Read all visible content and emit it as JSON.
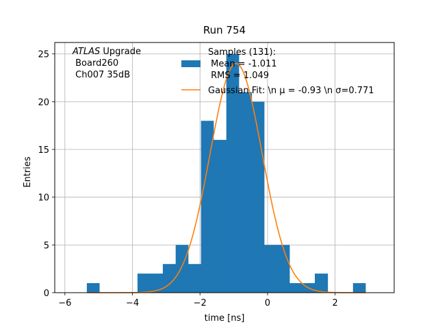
{
  "chart_data": {
    "type": "histogram",
    "title": "Run 754",
    "xlabel": "time [ns]",
    "ylabel": "Entries",
    "xlim": [
      -6.3,
      3.75
    ],
    "ylim": [
      0,
      26.2
    ],
    "xticks": [
      -6,
      -4,
      -2,
      0,
      2
    ],
    "yticks": [
      0,
      5,
      10,
      15,
      20,
      25
    ],
    "xtick_labels": [
      "−6",
      "−4",
      "−2",
      "0",
      "2"
    ],
    "ytick_labels": [
      "0",
      "5",
      "10",
      "15",
      "20",
      "25"
    ],
    "grid": true,
    "legend_position": "top-center",
    "annotation": {
      "line1_italic": "ATLAS",
      "line1_rest": " Upgrade",
      "line2": " Board260",
      "line3": " Ch007 35dB"
    },
    "histogram": {
      "name_lines": [
        "Samples (131):",
        " Mean = -1.011",
        " RMS = 1.049"
      ],
      "color": "#1f77b4",
      "bins": [
        {
          "x0": -5.35,
          "x1": -4.98,
          "count": 1
        },
        {
          "x0": -3.85,
          "x1": -3.47,
          "count": 2
        },
        {
          "x0": -3.47,
          "x1": -3.1,
          "count": 2
        },
        {
          "x0": -3.1,
          "x1": -2.72,
          "count": 3
        },
        {
          "x0": -2.72,
          "x1": -2.35,
          "count": 5
        },
        {
          "x0": -2.35,
          "x1": -1.97,
          "count": 3
        },
        {
          "x0": -1.97,
          "x1": -1.6,
          "count": 18
        },
        {
          "x0": -1.6,
          "x1": -1.22,
          "count": 16
        },
        {
          "x0": -1.22,
          "x1": -0.85,
          "count": 25
        },
        {
          "x0": -0.85,
          "x1": -0.47,
          "count": 21
        },
        {
          "x0": -0.47,
          "x1": -0.1,
          "count": 20
        },
        {
          "x0": -0.1,
          "x1": 0.28,
          "count": 5
        },
        {
          "x0": 0.28,
          "x1": 0.65,
          "count": 5
        },
        {
          "x0": 0.65,
          "x1": 1.03,
          "count": 1
        },
        {
          "x0": 1.03,
          "x1": 1.4,
          "count": 1
        },
        {
          "x0": 1.4,
          "x1": 1.78,
          "count": 2
        },
        {
          "x0": 2.53,
          "x1": 2.9,
          "count": 1
        }
      ]
    },
    "fit": {
      "name": "Gaussian Fit: \\n μ = -0.93 \\n σ=0.771",
      "color": "#ff7f0e",
      "mu": -0.93,
      "sigma": 0.771,
      "amplitude": 24.0,
      "x_range": [
        -5.35,
        2.9
      ]
    }
  }
}
